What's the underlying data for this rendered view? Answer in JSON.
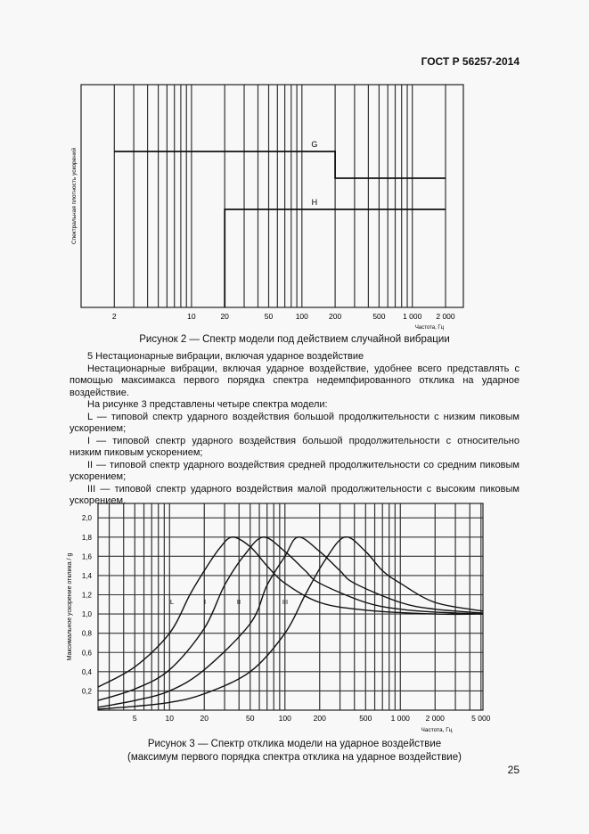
{
  "header": {
    "doc_id": "ГОСТ Р 56257-2014"
  },
  "chart_data": [
    {
      "type": "line",
      "title": "Рисунок 2 — Спектр модели под действием случайной вибрации",
      "xlabel": "Частота, Гц",
      "ylabel": "Спектральная плотность ускорений",
      "xscale": "log",
      "xlim": [
        1,
        2900
      ],
      "x_ticks": [
        2,
        10,
        20,
        50,
        100,
        200,
        500,
        1000,
        2000
      ],
      "x_tick_labels": [
        "2",
        "10",
        "20",
        "50",
        "100",
        "200",
        "500",
        "1 000",
        "2 000"
      ],
      "y_ticks": [],
      "grid": "vertical",
      "series": [
        {
          "name": "G",
          "x": [
            2,
            200,
            200,
            2000
          ],
          "y": [
            0.7,
            0.7,
            0.58,
            0.58
          ]
        },
        {
          "name": "H",
          "x": [
            20,
            20,
            2000
          ],
          "y": [
            0,
            0.44,
            0.44
          ]
        }
      ]
    },
    {
      "type": "line",
      "title": "Рисунок 3 — Спектр отклика модели на ударное воздействие",
      "subtitle": "(максимум первого порядка спектра отклика на ударное воздействие)",
      "xlabel": "Частота, Гц",
      "ylabel": "Максимальное ускорение отклика / g",
      "xscale": "log",
      "xlim": [
        2.4,
        5200
      ],
      "ylim": [
        0,
        2.15
      ],
      "x_ticks": [
        5,
        10,
        20,
        50,
        100,
        200,
        500,
        1000,
        2000,
        5000
      ],
      "x_tick_labels": [
        "5",
        "10",
        "20",
        "50",
        "100",
        "200",
        "500",
        "1 000",
        "2 000",
        "5 000"
      ],
      "y_ticks": [
        0.2,
        0.4,
        0.6,
        0.8,
        1.0,
        1.2,
        1.4,
        1.6,
        1.8,
        2.0
      ],
      "y_tick_labels": [
        "0,2",
        "0,4",
        "0,6",
        "0,8",
        "1,0",
        "1,2",
        "1,4",
        "1,6",
        "1,8",
        "2,0"
      ],
      "grid": "both",
      "series": [
        {
          "name": "L",
          "x": [
            2.4,
            5,
            10,
            15,
            20,
            27,
            35,
            50,
            70,
            100,
            200,
            500,
            2000,
            5200
          ],
          "y": [
            0.24,
            0.45,
            0.8,
            1.2,
            1.45,
            1.68,
            1.8,
            1.7,
            1.5,
            1.32,
            1.12,
            1.04,
            1.0,
            1.0
          ]
        },
        {
          "name": "I",
          "x": [
            2.4,
            5,
            10,
            20,
            30,
            45,
            65,
            100,
            150,
            200,
            500,
            1000,
            2000,
            5200
          ],
          "y": [
            0.1,
            0.22,
            0.42,
            0.85,
            1.3,
            1.62,
            1.8,
            1.65,
            1.45,
            1.32,
            1.12,
            1.05,
            1.02,
            1.0
          ]
        },
        {
          "name": "II",
          "x": [
            2.4,
            5,
            10,
            20,
            50,
            70,
            100,
            130,
            200,
            300,
            400,
            1000,
            2000,
            5200
          ],
          "y": [
            0.03,
            0.1,
            0.2,
            0.42,
            0.9,
            1.3,
            1.6,
            1.8,
            1.65,
            1.45,
            1.32,
            1.12,
            1.05,
            1.01
          ]
        },
        {
          "name": "III",
          "x": [
            2.4,
            5,
            10,
            20,
            50,
            100,
            150,
            220,
            330,
            500,
            700,
            1000,
            2000,
            5200
          ],
          "y": [
            0.01,
            0.04,
            0.08,
            0.17,
            0.4,
            0.8,
            1.2,
            1.55,
            1.8,
            1.65,
            1.45,
            1.32,
            1.12,
            1.03
          ]
        }
      ]
    }
  ],
  "section": {
    "heading": "5  Нестационарные вибрации, включая ударное воздействие",
    "paragraphs": [
      "Нестационарные вибрации, включая ударное воздействие, удобнее всего представлять с помощью максимакса первого порядка спектра недемпфированного отклика на ударное воздействие.",
      "На рисунке 3 представлены четыре спектра модели:",
      "L — типовой спектр ударного воздействия большой продолжительности с низким пиковым ускорением;",
      "I — типовой спектр ударного воздействия большой продолжительности с относительно низким пиковым ускорением;",
      "II — типовой спектр ударного воздействия средней продолжительности со средним пиковым ускорением;",
      "III — типовой спектр ударного воздействия малой продолжительности с высоким пиковым ускорением."
    ]
  },
  "page_number": "25"
}
